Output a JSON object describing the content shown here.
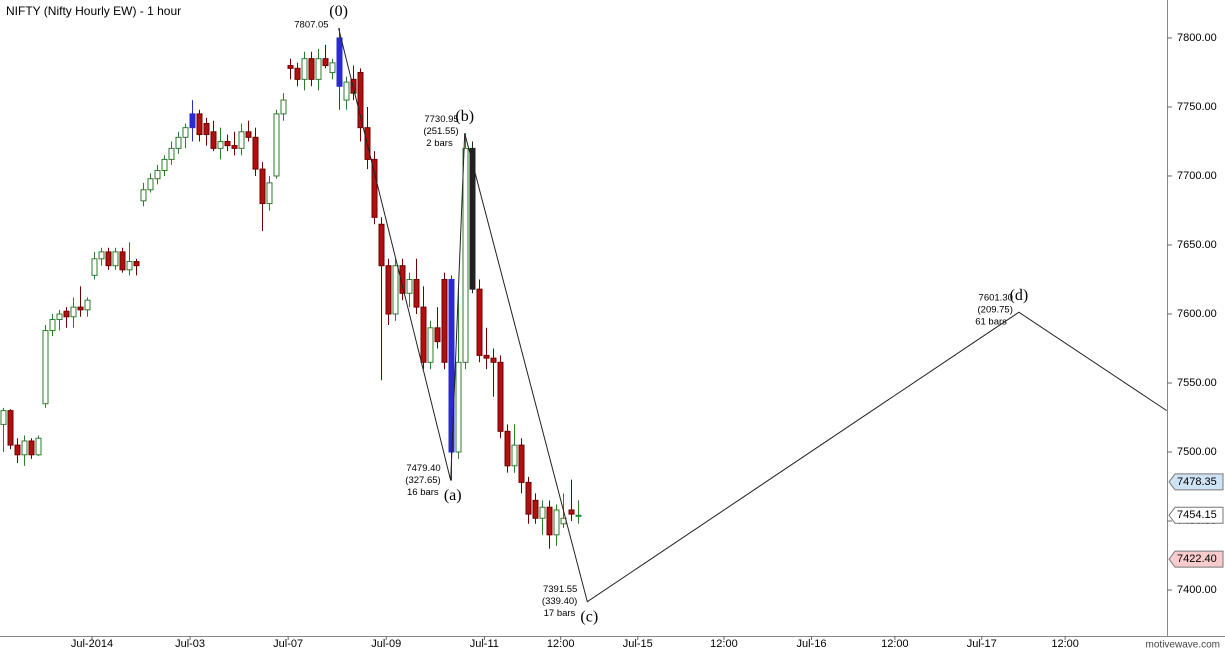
{
  "chart_data": {
    "type": "candlestick",
    "title": "NIFTY (Nifty Hourly EW) - 1 hour",
    "watermark": "motivewave.com",
    "up_color": "#ffffff",
    "up_stroke": "#2e7d2e",
    "down_color": "#b01010",
    "down_stroke": "#700000",
    "highlight_colors": [
      {
        "index": 27,
        "color": "#2a2ad0"
      },
      {
        "index": 48,
        "color": "#2a2ad0"
      },
      {
        "index": 64,
        "color": "#2a2ad0"
      },
      {
        "index": 67,
        "color": "#222222"
      }
    ],
    "candles": {
      "x": [
        0,
        1,
        2,
        3,
        4,
        5,
        6,
        7,
        8,
        9,
        10,
        11,
        12,
        13,
        14,
        15,
        16,
        17,
        18,
        19,
        20,
        21,
        22,
        23,
        24,
        25,
        26,
        27,
        28,
        29,
        30,
        31,
        32,
        33,
        34,
        35,
        36,
        37,
        38,
        39,
        40,
        41,
        42,
        43,
        44,
        45,
        46,
        47,
        48,
        49,
        50,
        51,
        52,
        53,
        54,
        55,
        56,
        57,
        58,
        59,
        60,
        61,
        62,
        63,
        64,
        65,
        66,
        67,
        68,
        69,
        70,
        71,
        72,
        73,
        74,
        75,
        76,
        77,
        78,
        79,
        80,
        81,
        82
      ],
      "open": [
        7520,
        7530,
        7505,
        7498,
        7508,
        7498,
        7535,
        7588,
        7596,
        7602,
        7598,
        7605,
        7603,
        7628,
        7640,
        7645,
        7635,
        7645,
        7632,
        7638,
        7682,
        7690,
        7698,
        7704,
        7712,
        7720,
        7728,
        7735,
        7745,
        7738,
        7732,
        7720,
        7725,
        7722,
        7720,
        7732,
        7728,
        7705,
        7680,
        7700,
        7745,
        7780,
        7778,
        7770,
        7785,
        7770,
        7785,
        7775,
        7765,
        7755,
        7770,
        7775,
        7735,
        7712,
        7665,
        7635,
        7600,
        7635,
        7615,
        7625,
        7605,
        7565,
        7590,
        7625,
        7625,
        7500,
        7565,
        7720,
        7618,
        7570,
        7568,
        7565,
        7515,
        7490,
        7505,
        7478,
        7465,
        7452,
        7460,
        7440,
        7448,
        7458,
        7454
      ],
      "high": [
        7532,
        7531,
        7510,
        7512,
        7510,
        7512,
        7592,
        7600,
        7603,
        7605,
        7612,
        7620,
        7612,
        7645,
        7648,
        7648,
        7648,
        7648,
        7652,
        7640,
        7695,
        7702,
        7708,
        7715,
        7725,
        7732,
        7738,
        7755,
        7748,
        7742,
        7740,
        7735,
        7730,
        7732,
        7738,
        7740,
        7735,
        7710,
        7700,
        7748,
        7760,
        7785,
        7782,
        7790,
        7790,
        7792,
        7795,
        7785,
        7807.05,
        7772,
        7780,
        7778,
        7750,
        7718,
        7670,
        7640,
        7640,
        7640,
        7630,
        7640,
        7620,
        7595,
        7605,
        7630,
        7628,
        7620,
        7730.95,
        7725,
        7625,
        7590,
        7575,
        7570,
        7520,
        7520,
        7510,
        7482,
        7470,
        7465,
        7465,
        7462,
        7470,
        7480,
        7465
      ],
      "low": [
        7500,
        7502,
        7492,
        7490,
        7495,
        7497,
        7532,
        7584,
        7588,
        7590,
        7590,
        7598,
        7598,
        7625,
        7635,
        7632,
        7632,
        7630,
        7628,
        7628,
        7678,
        7688,
        7694,
        7700,
        7708,
        7716,
        7720,
        7725,
        7725,
        7722,
        7718,
        7712,
        7718,
        7715,
        7715,
        7725,
        7700,
        7660,
        7675,
        7698,
        7740,
        7770,
        7765,
        7762,
        7765,
        7762,
        7778,
        7770,
        7748,
        7748,
        7755,
        7725,
        7705,
        7665,
        7552,
        7592,
        7595,
        7610,
        7605,
        7600,
        7560,
        7560,
        7575,
        7560,
        7479.4,
        7495,
        7560,
        7615,
        7565,
        7560,
        7540,
        7510,
        7485,
        7485,
        7470,
        7448,
        7448,
        7440,
        7430,
        7432,
        7445,
        7450,
        7448
      ],
      "close": [
        7530,
        7505,
        7498,
        7508,
        7498,
        7510,
        7588,
        7596,
        7600,
        7598,
        7605,
        7603,
        7610,
        7640,
        7645,
        7635,
        7645,
        7632,
        7638,
        7635,
        7690,
        7698,
        7704,
        7712,
        7720,
        7728,
        7735,
        7745,
        7730,
        7730,
        7720,
        7725,
        7722,
        7720,
        7732,
        7728,
        7705,
        7680,
        7695,
        7745,
        7755,
        7778,
        7770,
        7785,
        7770,
        7785,
        7780,
        7782,
        7800,
        7768,
        7760,
        7735,
        7712,
        7670,
        7635,
        7600,
        7635,
        7615,
        7625,
        7605,
        7565,
        7590,
        7580,
        7565,
        7500,
        7565,
        7720,
        7618,
        7570,
        7568,
        7565,
        7515,
        7490,
        7505,
        7478,
        7455,
        7452,
        7460,
        7440,
        7458,
        7452,
        7455,
        7454.15
      ]
    },
    "waves": [
      {
        "name": "(0)",
        "x": 47.9,
        "value": 7807.05,
        "value_label": "7807.05"
      },
      {
        "name": "(a)",
        "x": 63.9,
        "value": 7479.4,
        "value_label": "7479.40",
        "change": "(327.65)",
        "bars": "16 bars"
      },
      {
        "name": "(b)",
        "x": 65.9,
        "value": 7730.95,
        "value_label": "7730.95",
        "change": "(251.55)",
        "bars": "2 bars"
      },
      {
        "name": "(c)",
        "x": 83.4,
        "value": 7391.55,
        "value_label": "7391.55",
        "change": "(339.40)",
        "bars": "17 bars"
      },
      {
        "name": "(d)",
        "x": 145,
        "value": 7601.3,
        "value_label": "7601.30",
        "change": "(209.75)",
        "bars": "61 bars"
      },
      {
        "x": 166.1,
        "value": 7530
      }
    ],
    "price_markers": [
      {
        "value": 7478.35,
        "label": "7478.35",
        "color": "#cfe3f6"
      },
      {
        "value": 7454.15,
        "label": "7454.15",
        "color": "#ffffff"
      },
      {
        "value": 7422.4,
        "label": "7422.40",
        "color": "#f8cccc"
      }
    ],
    "xlim": [
      -0.43,
      166.14
    ],
    "xticks": [
      {
        "value": 12.7,
        "label": "Jul-2014"
      },
      {
        "value": 26.7,
        "label": "Jul-03"
      },
      {
        "value": 40.7,
        "label": "Jul-07"
      },
      {
        "value": 54.7,
        "label": "Jul-09"
      },
      {
        "value": 68.7,
        "label": "Jul-11"
      },
      {
        "value": 79.6,
        "label": "12:00"
      },
      {
        "value": 90.6,
        "label": "Jul-15"
      },
      {
        "value": 102.9,
        "label": "12:00"
      },
      {
        "value": 115.4,
        "label": "Jul-16"
      },
      {
        "value": 127.3,
        "label": "12:00"
      },
      {
        "value": 139.7,
        "label": "Jul-17"
      },
      {
        "value": 151.6,
        "label": "12:00"
      }
    ],
    "ylim": [
      7366.7,
      7827.5
    ],
    "yticks": [
      {
        "value": 7400,
        "label": "7400.00"
      },
      {
        "value": 7450,
        "label": "7450.00"
      },
      {
        "value": 7500,
        "label": "7500.00"
      },
      {
        "value": 7550,
        "label": "7550.00"
      },
      {
        "value": 7600,
        "label": "7600.00"
      },
      {
        "value": 7650,
        "label": "7650.00"
      },
      {
        "value": 7700,
        "label": "7700.00"
      },
      {
        "value": 7750,
        "label": "7750.00"
      },
      {
        "value": 7800,
        "label": "7800.00"
      }
    ]
  }
}
